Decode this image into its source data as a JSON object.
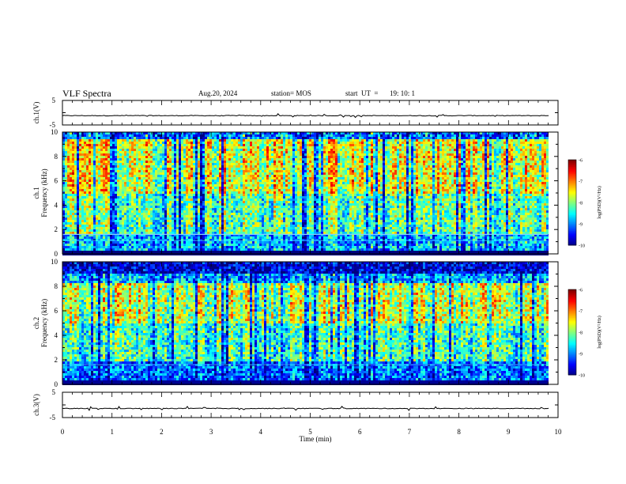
{
  "header": {
    "title": "VLF Spectra",
    "date": "Aug.20, 2024",
    "station": "station= MOS",
    "start_label": "start  UT  =",
    "start_time": "19: 10: 1"
  },
  "chart_data": [
    {
      "type": "line",
      "panel": "ch1-waveform",
      "ylabel": "ch.1(V)",
      "ylim": [
        -5,
        5
      ],
      "ytick_labels": [
        "5",
        "-5"
      ],
      "x": [
        0,
        9.83
      ],
      "y": [
        -1.2,
        -1.2
      ],
      "description_series": "near-constant trace around -1 V with small spikes"
    },
    {
      "type": "heatmap",
      "panel": "ch1-spectrogram",
      "ylabel": "ch.1\nFrequency (kHz)",
      "ylim": [
        0,
        10
      ],
      "ytick_labels": [
        "0",
        "2",
        "4",
        "6",
        "8",
        "10"
      ],
      "x_range_min": [
        0,
        9.83
      ],
      "colorbar": {
        "label": "log(PSD)(V²/Hz)",
        "range": [
          -10,
          -6
        ],
        "tick_labels": [
          "-6",
          "-7",
          "-8",
          "-9",
          "-10"
        ]
      },
      "dominant_band_khz": [
        5,
        9.5
      ],
      "dominant_level": -7
    },
    {
      "type": "heatmap",
      "panel": "ch2-spectrogram",
      "ylabel": "ch.2\nFrequency (kHz)",
      "ylim": [
        0,
        10
      ],
      "ytick_labels": [
        "0",
        "2",
        "4",
        "6",
        "8",
        "10"
      ],
      "x_range_min": [
        0,
        9.83
      ],
      "colorbar": {
        "label": "log(PSD)(V²/Hz)",
        "range": [
          -10,
          -6
        ],
        "tick_labels": [
          "-6",
          "-7",
          "-8",
          "-9",
          "-10"
        ]
      },
      "dominant_band_khz": [
        5,
        8
      ],
      "dominant_level": -7.3
    },
    {
      "type": "line",
      "panel": "ch3-waveform",
      "ylabel": "ch.3(V)",
      "ylim": [
        -5,
        5
      ],
      "ytick_labels": [
        "5",
        "-5"
      ],
      "x": [
        0,
        9.83
      ],
      "y": [
        -1.4,
        -1.4
      ]
    }
  ],
  "x_axis": {
    "label": "Time  (min)",
    "range": [
      0,
      10
    ],
    "tick_labels": [
      "0",
      "1",
      "2",
      "3",
      "4",
      "5",
      "6",
      "7",
      "8",
      "9",
      "10"
    ]
  }
}
